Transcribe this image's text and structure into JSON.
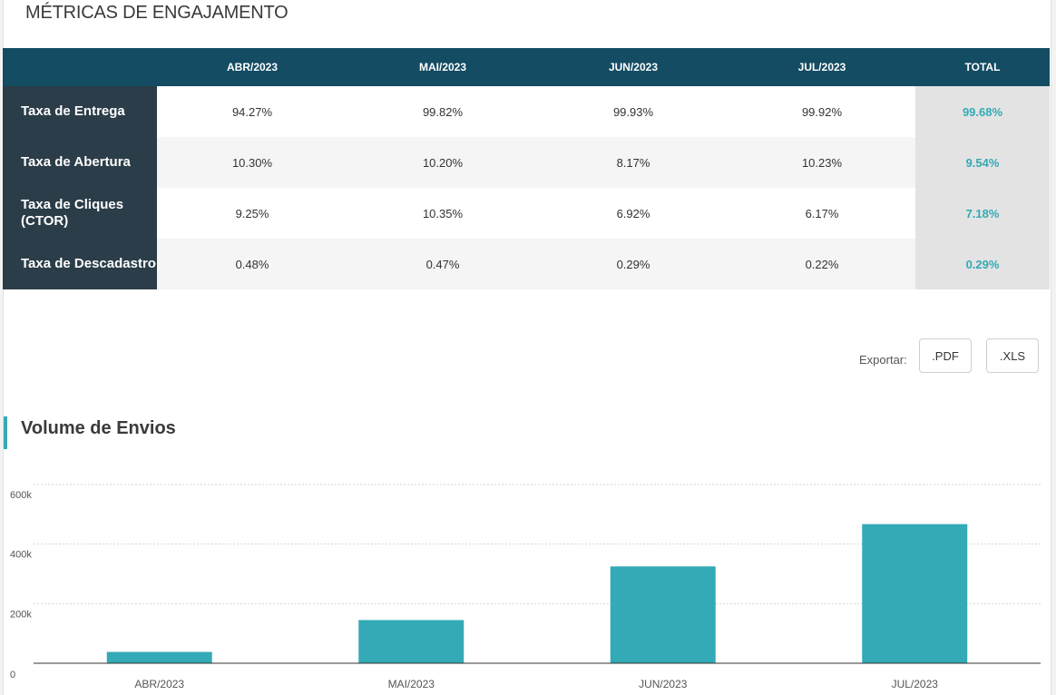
{
  "page_title": "MÉTRICAS DE ENGAJAMENTO",
  "table": {
    "columns": [
      "",
      "ABR/2023",
      "MAI/2023",
      "JUN/2023",
      "JUL/2023",
      "TOTAL"
    ],
    "rows": [
      {
        "label": "Taxa de Entrega",
        "values": [
          "94.27%",
          "99.82%",
          "99.93%",
          "99.92%"
        ],
        "total": "99.68%"
      },
      {
        "label": "Taxa de Abertura",
        "values": [
          "10.30%",
          "10.20%",
          "8.17%",
          "10.23%"
        ],
        "total": "9.54%"
      },
      {
        "label": "Taxa de Cliques (CTOR)",
        "values": [
          "9.25%",
          "10.35%",
          "6.92%",
          "6.17%"
        ],
        "total": "7.18%"
      },
      {
        "label": "Taxa de Descadastro",
        "values": [
          "0.48%",
          "0.47%",
          "0.29%",
          "0.22%"
        ],
        "total": "0.29%"
      }
    ]
  },
  "export": {
    "label": "Exportar:",
    "pdf_label": ".PDF",
    "xls_label": ".XLS"
  },
  "section_title": "Volume de Envios",
  "colors": {
    "accent": "#33aab5",
    "header": "#144c63",
    "row_label": "#2b3d48"
  },
  "chart_data": {
    "type": "bar",
    "categories": [
      "ABR/2023",
      "MAI/2023",
      "JUN/2023",
      "JUL/2023"
    ],
    "values": [
      38000,
      145000,
      325000,
      467000
    ],
    "ylim": [
      0,
      600000
    ],
    "yticks": [
      0,
      200000,
      400000,
      600000
    ],
    "ytick_labels": [
      "0",
      "200k",
      "400k",
      "600k"
    ],
    "grid": true,
    "color": "#33aab5"
  }
}
